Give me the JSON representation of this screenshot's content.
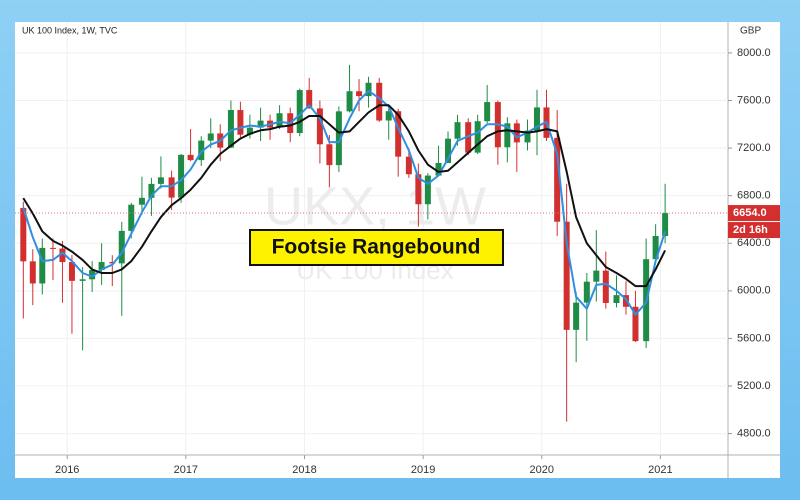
{
  "chart_data": {
    "type": "candlestick",
    "title": "UK 100 Index, 1W, TVC",
    "currency": "GBP",
    "watermark": "UKX, 1W",
    "watermark_subtitle": "UK 100 Index",
    "annotation": "Footsie Rangebound",
    "x": [
      2015.63,
      2015.71,
      2015.79,
      2015.88,
      2015.96,
      2016.04,
      2016.13,
      2016.21,
      2016.29,
      2016.38,
      2016.46,
      2016.54,
      2016.63,
      2016.71,
      2016.79,
      2016.88,
      2016.96,
      2017.04,
      2017.13,
      2017.21,
      2017.29,
      2017.38,
      2017.46,
      2017.54,
      2017.63,
      2017.71,
      2017.79,
      2017.88,
      2017.96,
      2018.04,
      2018.13,
      2018.21,
      2018.29,
      2018.38,
      2018.46,
      2018.54,
      2018.63,
      2018.71,
      2018.79,
      2018.88,
      2018.96,
      2019.04,
      2019.13,
      2019.21,
      2019.29,
      2019.38,
      2019.46,
      2019.54,
      2019.63,
      2019.71,
      2019.79,
      2019.88,
      2019.96,
      2020.04,
      2020.13,
      2020.21,
      2020.29,
      2020.38,
      2020.46,
      2020.54,
      2020.63,
      2020.71,
      2020.79,
      2020.88,
      2020.96,
      2021.04
    ],
    "open": [
      6696,
      6248,
      6062,
      6361,
      6356,
      6242,
      6084,
      6097,
      6175,
      6242,
      6231,
      6504,
      6724,
      6782,
      6899,
      6954,
      6784,
      7143,
      7099,
      7263,
      7323,
      7204,
      7520,
      7313,
      7372,
      7431,
      7373,
      7493,
      7327,
      7688,
      7534,
      7232,
      7057,
      7509,
      7678,
      7637,
      7749,
      7432,
      7510,
      7128,
      6980,
      6728,
      6969,
      7075,
      7279,
      7418,
      7162,
      7426,
      7587,
      7207,
      7408,
      7248,
      7347,
      7542,
      7286,
      6581,
      5672,
      5901,
      6077,
      6170,
      5898,
      5964,
      5866,
      5577,
      6266,
      6461
    ],
    "high": [
      6750,
      6350,
      6440,
      6440,
      6420,
      6300,
      6200,
      6250,
      6400,
      6300,
      6580,
      6740,
      6960,
      6950,
      7130,
      7010,
      7150,
      7360,
      7300,
      7450,
      7400,
      7600,
      7590,
      7480,
      7540,
      7480,
      7560,
      7540,
      7700,
      7790,
      7600,
      7310,
      7550,
      7900,
      7780,
      7800,
      7790,
      7560,
      7530,
      7200,
      7070,
      6990,
      7220,
      7340,
      7480,
      7450,
      7480,
      7730,
      7600,
      7460,
      7440,
      7440,
      7690,
      7690,
      7520,
      6900,
      5990,
      6150,
      6510,
      6330,
      6130,
      6080,
      6000,
      6440,
      6560,
      6900
    ],
    "low": [
      5768,
      5880,
      5970,
      6090,
      5900,
      5640,
      5500,
      5990,
      6050,
      6040,
      5790,
      6440,
      6640,
      6630,
      6860,
      6680,
      6740,
      7090,
      7050,
      7200,
      7090,
      7200,
      7290,
      7280,
      7260,
      7270,
      7360,
      7250,
      7300,
      7530,
      7070,
      6870,
      7000,
      7500,
      7510,
      7540,
      7420,
      7270,
      6960,
      6950,
      6540,
      6600,
      6980,
      7080,
      7220,
      7140,
      7150,
      7410,
      7060,
      7080,
      7000,
      7180,
      7140,
      7260,
      6460,
      4900,
      5400,
      5580,
      5910,
      5850,
      5860,
      5800,
      5570,
      5520,
      6300,
      6400
    ],
    "close": [
      6248,
      6062,
      6361,
      6356,
      6242,
      6084,
      6097,
      6175,
      6242,
      6231,
      6504,
      6724,
      6782,
      6899,
      6954,
      6784,
      7143,
      7099,
      7263,
      7323,
      7204,
      7520,
      7313,
      7372,
      7431,
      7373,
      7493,
      7327,
      7688,
      7534,
      7232,
      7057,
      7509,
      7678,
      7637,
      7749,
      7432,
      7510,
      7128,
      6980,
      6728,
      6969,
      7075,
      7279,
      7418,
      7162,
      7426,
      7587,
      7207,
      7408,
      7248,
      7347,
      7542,
      7286,
      6581,
      5672,
      5901,
      6077,
      6170,
      5898,
      5964,
      5866,
      5577,
      6266,
      6461,
      6654
    ],
    "up_color": "#1e8c45",
    "down_color": "#d22f2f",
    "moving_averages": [
      {
        "color": "#2f8fe0",
        "values": [
          6700,
          6450,
          6250,
          6260,
          6320,
          6250,
          6150,
          6120,
          6180,
          6220,
          6320,
          6480,
          6660,
          6800,
          6880,
          6880,
          6930,
          7020,
          7170,
          7230,
          7260,
          7350,
          7370,
          7390,
          7380,
          7400,
          7420,
          7410,
          7480,
          7560,
          7450,
          7250,
          7250,
          7450,
          7600,
          7680,
          7620,
          7550,
          7370,
          7180,
          6950,
          6900,
          6970,
          7110,
          7260,
          7300,
          7330,
          7400,
          7400,
          7380,
          7290,
          7330,
          7380,
          7420,
          7150,
          6400,
          5950,
          5850,
          6050,
          6060,
          6000,
          5930,
          5800,
          5900,
          6250,
          6500
        ]
      },
      {
        "color": "#111111",
        "values": [
          6780,
          6650,
          6500,
          6420,
          6380,
          6330,
          6260,
          6180,
          6150,
          6150,
          6180,
          6250,
          6370,
          6500,
          6620,
          6720,
          6780,
          6850,
          6950,
          7060,
          7150,
          7220,
          7280,
          7320,
          7350,
          7360,
          7380,
          7390,
          7420,
          7470,
          7470,
          7400,
          7330,
          7340,
          7420,
          7500,
          7560,
          7560,
          7480,
          7340,
          7180,
          7060,
          7000,
          7010,
          7080,
          7160,
          7230,
          7300,
          7340,
          7350,
          7340,
          7330,
          7340,
          7360,
          7340,
          7000,
          6620,
          6400,
          6300,
          6200,
          6150,
          6100,
          6040,
          6040,
          6180,
          6340
        ]
      }
    ],
    "price_label": {
      "value": 6654,
      "label": "6654.0"
    },
    "countdown": "2d 16h",
    "xlim": [
      2015.56,
      2021.57
    ],
    "xticks": [
      2016,
      2017,
      2018,
      2019,
      2020,
      2021
    ],
    "ylim": [
      4620,
      8260
    ],
    "yticks": [
      {
        "value": 4800,
        "label": "4800.0"
      },
      {
        "value": 5200,
        "label": "5200.0"
      },
      {
        "value": 5600,
        "label": "5600.0"
      },
      {
        "value": 6000,
        "label": "6000.0"
      },
      {
        "value": 6400,
        "label": "6400.0"
      },
      {
        "value": 6800,
        "label": "6800.0"
      },
      {
        "value": 7200,
        "label": "7200.0"
      },
      {
        "value": 7600,
        "label": "7600.0"
      },
      {
        "value": 8000,
        "label": "8000.0"
      }
    ],
    "grid": true
  }
}
